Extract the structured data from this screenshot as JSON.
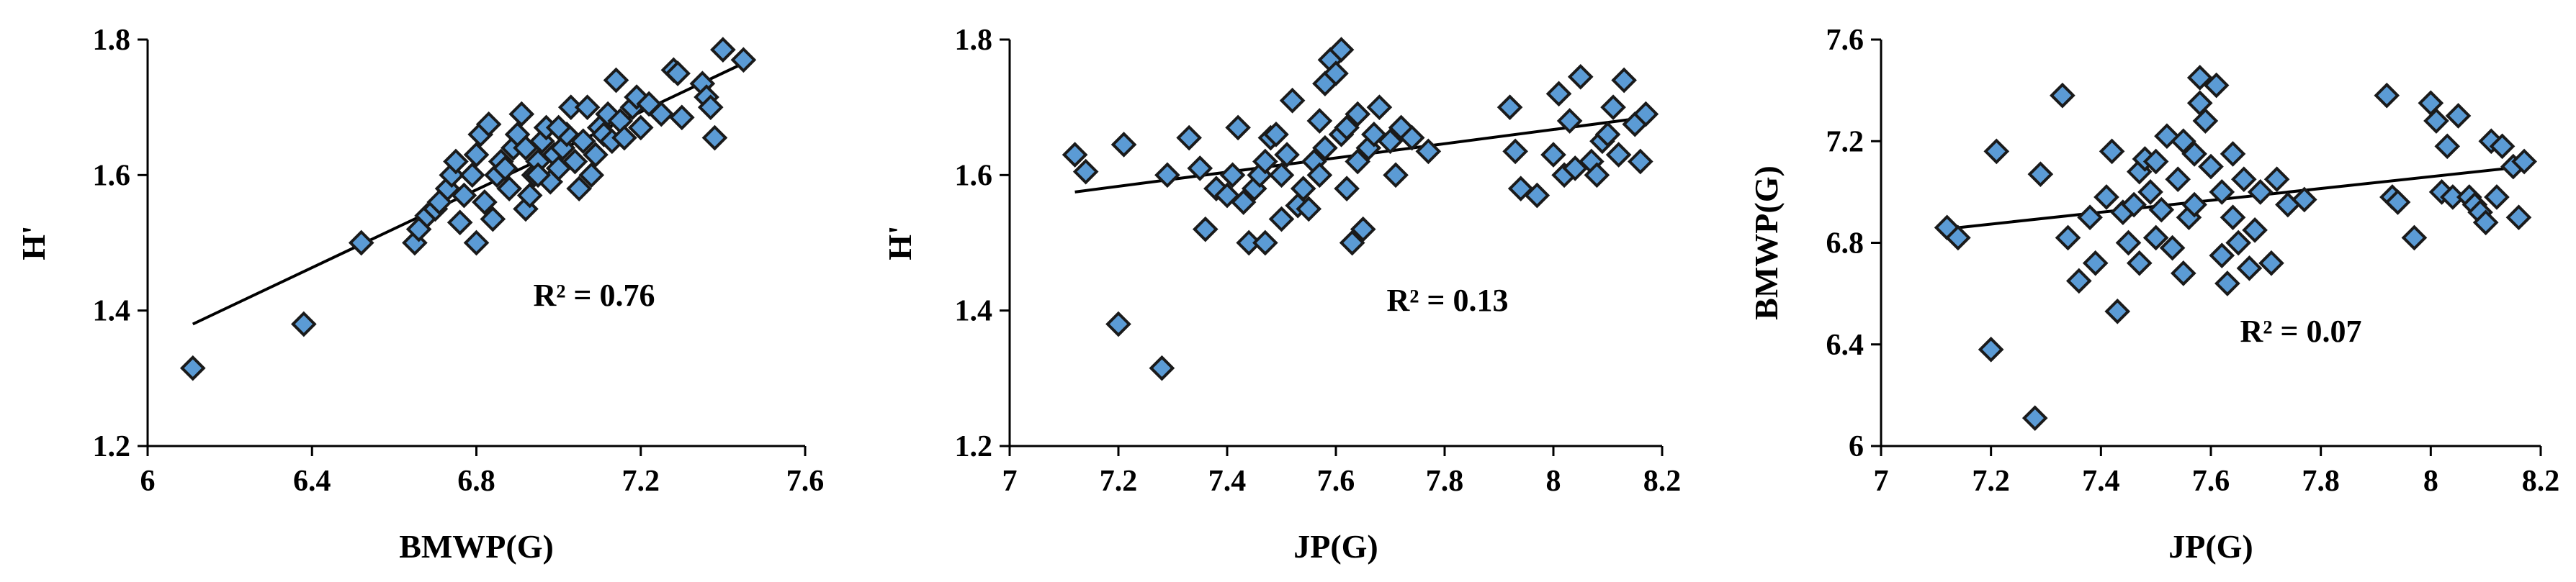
{
  "chart_data": [
    {
      "type": "scatter",
      "xlabel": "BMWP(G)",
      "ylabel": "H'",
      "xlim": [
        6,
        7.6
      ],
      "ylim": [
        1.2,
        1.8
      ],
      "xticks": [
        "6",
        "6.4",
        "6.8",
        "7.2",
        "7.6"
      ],
      "yticks": [
        "1.2",
        "1.4",
        "1.6",
        "1.8"
      ],
      "annotation": "R² = 0.76",
      "trendline": {
        "x": [
          6.11,
          7.45
        ],
        "y": [
          1.38,
          1.765
        ]
      },
      "marker_color": "#5b9bd5",
      "points": [
        [
          6.11,
          1.315
        ],
        [
          6.38,
          1.38
        ],
        [
          6.52,
          1.5
        ],
        [
          6.65,
          1.5
        ],
        [
          6.66,
          1.52
        ],
        [
          6.68,
          1.54
        ],
        [
          6.7,
          1.55
        ],
        [
          6.71,
          1.56
        ],
        [
          6.73,
          1.58
        ],
        [
          6.74,
          1.6
        ],
        [
          6.75,
          1.62
        ],
        [
          6.76,
          1.53
        ],
        [
          6.77,
          1.57
        ],
        [
          6.79,
          1.6
        ],
        [
          6.8,
          1.5
        ],
        [
          6.8,
          1.63
        ],
        [
          6.81,
          1.66
        ],
        [
          6.82,
          1.56
        ],
        [
          6.83,
          1.675
        ],
        [
          6.84,
          1.535
        ],
        [
          6.85,
          1.6
        ],
        [
          6.86,
          1.62
        ],
        [
          6.88,
          1.58
        ],
        [
          6.89,
          1.64
        ],
        [
          6.9,
          1.66
        ],
        [
          6.91,
          1.69
        ],
        [
          6.92,
          1.55
        ],
        [
          6.93,
          1.57
        ],
        [
          6.94,
          1.6
        ],
        [
          6.95,
          1.62
        ],
        [
          6.96,
          1.65
        ],
        [
          6.97,
          1.67
        ],
        [
          6.98,
          1.59
        ],
        [
          6.99,
          1.63
        ],
        [
          7.0,
          1.61
        ],
        [
          7.01,
          1.64
        ],
        [
          7.02,
          1.66
        ],
        [
          7.03,
          1.7
        ],
        [
          7.04,
          1.62
        ],
        [
          7.05,
          1.58
        ],
        [
          7.06,
          1.65
        ],
        [
          7.07,
          1.7
        ],
        [
          7.08,
          1.6
        ],
        [
          7.09,
          1.63
        ],
        [
          7.1,
          1.67
        ],
        [
          7.11,
          1.66
        ],
        [
          7.12,
          1.69
        ],
        [
          7.13,
          1.65
        ],
        [
          7.14,
          1.74
        ],
        [
          7.15,
          1.68
        ],
        [
          7.16,
          1.655
        ],
        [
          7.18,
          1.7
        ],
        [
          7.19,
          1.715
        ],
        [
          7.2,
          1.67
        ],
        [
          7.22,
          1.705
        ],
        [
          7.25,
          1.69
        ],
        [
          7.28,
          1.755
        ],
        [
          7.29,
          1.75
        ],
        [
          7.3,
          1.685
        ],
        [
          7.35,
          1.735
        ],
        [
          7.36,
          1.715
        ],
        [
          7.37,
          1.7
        ],
        [
          7.38,
          1.655
        ],
        [
          7.4,
          1.785
        ],
        [
          7.45,
          1.77
        ],
        [
          6.92,
          1.64
        ],
        [
          6.87,
          1.61
        ],
        [
          7.0,
          1.67
        ],
        [
          6.95,
          1.6
        ]
      ]
    },
    {
      "type": "scatter",
      "xlabel": "JP(G)",
      "ylabel": "H'",
      "xlim": [
        7,
        8.2
      ],
      "ylim": [
        1.2,
        1.8
      ],
      "xticks": [
        "7",
        "7.2",
        "7.4",
        "7.6",
        "7.8",
        "8",
        "8.2"
      ],
      "yticks": [
        "1.2",
        "1.4",
        "1.6",
        "1.8"
      ],
      "annotation": "R² = 0.13",
      "trendline": {
        "x": [
          7.12,
          8.17
        ],
        "y": [
          1.575,
          1.685
        ]
      },
      "marker_color": "#5b9bd5",
      "points": [
        [
          7.12,
          1.63
        ],
        [
          7.14,
          1.605
        ],
        [
          7.2,
          1.38
        ],
        [
          7.21,
          1.645
        ],
        [
          7.28,
          1.315
        ],
        [
          7.29,
          1.6
        ],
        [
          7.33,
          1.655
        ],
        [
          7.35,
          1.61
        ],
        [
          7.36,
          1.52
        ],
        [
          7.38,
          1.58
        ],
        [
          7.4,
          1.57
        ],
        [
          7.41,
          1.6
        ],
        [
          7.42,
          1.67
        ],
        [
          7.43,
          1.56
        ],
        [
          7.44,
          1.5
        ],
        [
          7.45,
          1.58
        ],
        [
          7.46,
          1.6
        ],
        [
          7.47,
          1.62
        ],
        [
          7.47,
          1.5
        ],
        [
          7.48,
          1.655
        ],
        [
          7.49,
          1.66
        ],
        [
          7.5,
          1.535
        ],
        [
          7.5,
          1.6
        ],
        [
          7.51,
          1.63
        ],
        [
          7.52,
          1.71
        ],
        [
          7.53,
          1.555
        ],
        [
          7.54,
          1.58
        ],
        [
          7.55,
          1.55
        ],
        [
          7.56,
          1.62
        ],
        [
          7.57,
          1.6
        ],
        [
          7.57,
          1.68
        ],
        [
          7.58,
          1.64
        ],
        [
          7.58,
          1.735
        ],
        [
          7.59,
          1.77
        ],
        [
          7.6,
          1.75
        ],
        [
          7.61,
          1.66
        ],
        [
          7.61,
          1.785
        ],
        [
          7.62,
          1.58
        ],
        [
          7.62,
          1.67
        ],
        [
          7.63,
          1.5
        ],
        [
          7.64,
          1.62
        ],
        [
          7.64,
          1.69
        ],
        [
          7.65,
          1.52
        ],
        [
          7.66,
          1.64
        ],
        [
          7.67,
          1.66
        ],
        [
          7.68,
          1.7
        ],
        [
          7.7,
          1.65
        ],
        [
          7.71,
          1.6
        ],
        [
          7.72,
          1.67
        ],
        [
          7.74,
          1.655
        ],
        [
          7.77,
          1.635
        ],
        [
          7.92,
          1.7
        ],
        [
          7.93,
          1.635
        ],
        [
          7.94,
          1.58
        ],
        [
          7.97,
          1.57
        ],
        [
          8.0,
          1.63
        ],
        [
          8.01,
          1.72
        ],
        [
          8.02,
          1.6
        ],
        [
          8.03,
          1.68
        ],
        [
          8.04,
          1.61
        ],
        [
          8.05,
          1.745
        ],
        [
          8.07,
          1.62
        ],
        [
          8.08,
          1.6
        ],
        [
          8.09,
          1.65
        ],
        [
          8.1,
          1.66
        ],
        [
          8.11,
          1.7
        ],
        [
          8.12,
          1.63
        ],
        [
          8.13,
          1.74
        ],
        [
          8.15,
          1.675
        ],
        [
          8.16,
          1.62
        ],
        [
          8.17,
          1.69
        ]
      ]
    },
    {
      "type": "scatter",
      "xlabel": "JP(G)",
      "ylabel": "BMWP(G)",
      "xlim": [
        7,
        8.2
      ],
      "ylim": [
        6,
        7.6
      ],
      "xticks": [
        "7",
        "7.2",
        "7.4",
        "7.6",
        "7.8",
        "8",
        "8.2"
      ],
      "yticks": [
        "6",
        "6.4",
        "6.8",
        "7.2",
        "7.6"
      ],
      "annotation": "R² = 0.07",
      "trendline": {
        "x": [
          7.12,
          8.17
        ],
        "y": [
          6.855,
          7.1
        ]
      },
      "marker_color": "#5b9bd5",
      "points": [
        [
          7.12,
          6.86
        ],
        [
          7.14,
          6.82
        ],
        [
          7.2,
          6.38
        ],
        [
          7.21,
          7.16
        ],
        [
          7.28,
          6.11
        ],
        [
          7.29,
          7.07
        ],
        [
          7.33,
          7.38
        ],
        [
          7.34,
          6.82
        ],
        [
          7.36,
          6.65
        ],
        [
          7.38,
          6.9
        ],
        [
          7.39,
          6.72
        ],
        [
          7.41,
          6.98
        ],
        [
          7.42,
          7.16
        ],
        [
          7.43,
          6.53
        ],
        [
          7.44,
          6.92
        ],
        [
          7.45,
          6.8
        ],
        [
          7.46,
          6.95
        ],
        [
          7.47,
          7.08
        ],
        [
          7.47,
          6.72
        ],
        [
          7.48,
          7.13
        ],
        [
          7.49,
          7.0
        ],
        [
          7.5,
          6.82
        ],
        [
          7.5,
          7.12
        ],
        [
          7.51,
          6.93
        ],
        [
          7.52,
          7.22
        ],
        [
          7.53,
          6.78
        ],
        [
          7.54,
          7.05
        ],
        [
          7.55,
          7.2
        ],
        [
          7.55,
          6.68
        ],
        [
          7.56,
          6.9
        ],
        [
          7.57,
          7.15
        ],
        [
          7.57,
          6.95
        ],
        [
          7.58,
          7.45
        ],
        [
          7.58,
          7.35
        ],
        [
          7.59,
          7.28
        ],
        [
          7.6,
          7.1
        ],
        [
          7.61,
          7.42
        ],
        [
          7.62,
          6.75
        ],
        [
          7.62,
          7.0
        ],
        [
          7.63,
          6.64
        ],
        [
          7.64,
          7.15
        ],
        [
          7.64,
          6.9
        ],
        [
          7.65,
          6.8
        ],
        [
          7.66,
          7.05
        ],
        [
          7.67,
          6.7
        ],
        [
          7.68,
          6.85
        ],
        [
          7.69,
          7.0
        ],
        [
          7.71,
          6.72
        ],
        [
          7.72,
          7.05
        ],
        [
          7.74,
          6.95
        ],
        [
          7.77,
          6.97
        ],
        [
          7.92,
          7.38
        ],
        [
          7.93,
          6.98
        ],
        [
          7.94,
          6.96
        ],
        [
          7.97,
          6.82
        ],
        [
          8.0,
          7.35
        ],
        [
          8.01,
          7.28
        ],
        [
          8.02,
          7.0
        ],
        [
          8.03,
          7.18
        ],
        [
          8.04,
          6.98
        ],
        [
          8.05,
          7.3
        ],
        [
          8.07,
          6.98
        ],
        [
          8.08,
          6.95
        ],
        [
          8.09,
          6.92
        ],
        [
          8.1,
          6.88
        ],
        [
          8.11,
          7.2
        ],
        [
          8.12,
          6.98
        ],
        [
          8.13,
          7.18
        ],
        [
          8.15,
          7.1
        ],
        [
          8.16,
          6.9
        ],
        [
          8.17,
          7.12
        ]
      ]
    }
  ]
}
